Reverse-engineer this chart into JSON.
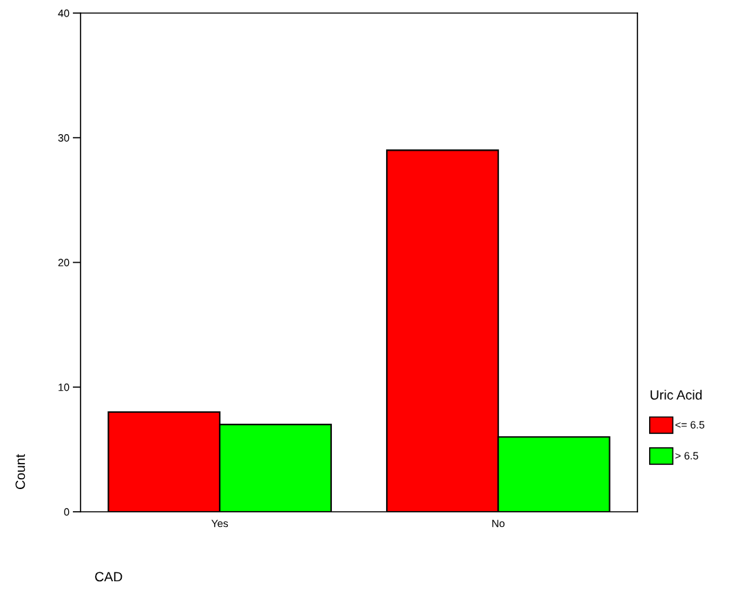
{
  "chart_data": {
    "type": "bar",
    "xlabel": "CAD",
    "ylabel": "Count",
    "legend_title": "Uric Acid",
    "categories": [
      "Yes",
      "No"
    ],
    "series": [
      {
        "name": "<= 6.5",
        "color": "#ff0000",
        "values": [
          8,
          29
        ]
      },
      {
        "name": "> 6.5",
        "color": "#00ff00",
        "values": [
          7,
          6
        ]
      }
    ],
    "ylim": [
      0,
      40
    ],
    "yticks": [
      0,
      10,
      20,
      30,
      40
    ],
    "grid": false,
    "legend": "right"
  }
}
